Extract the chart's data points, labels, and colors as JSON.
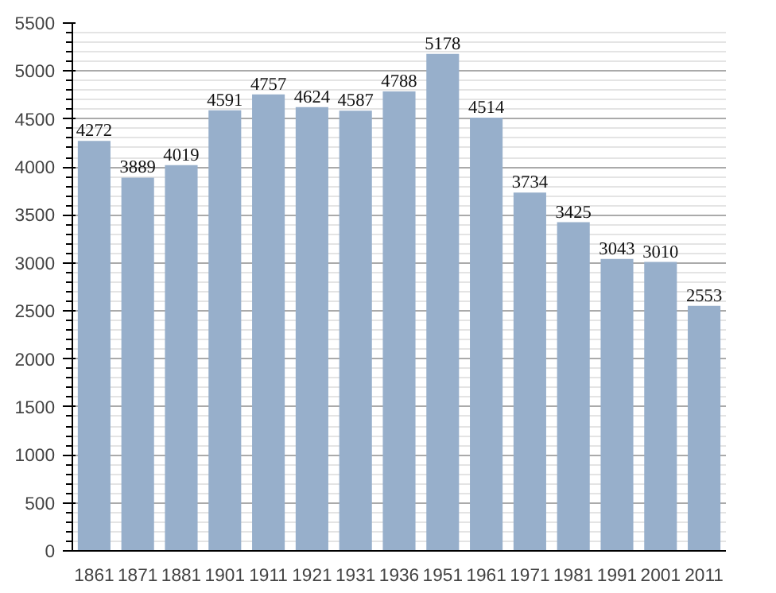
{
  "chart_data": {
    "type": "bar",
    "categories": [
      "1861",
      "1871",
      "1881",
      "1901",
      "1911",
      "1921",
      "1931",
      "1936",
      "1951",
      "1961",
      "1971",
      "1981",
      "1991",
      "2001",
      "2011"
    ],
    "values": [
      4272,
      3889,
      4019,
      4591,
      4757,
      4624,
      4587,
      4788,
      5178,
      4514,
      3734,
      3425,
      3043,
      3010,
      2553
    ],
    "color": "#97afcb",
    "ylim": [
      0,
      5500
    ],
    "yticks": [
      0,
      500,
      1000,
      1500,
      2000,
      2500,
      3000,
      3500,
      4000,
      4500,
      5000,
      5500
    ],
    "grid": "y",
    "data_labels": true
  }
}
